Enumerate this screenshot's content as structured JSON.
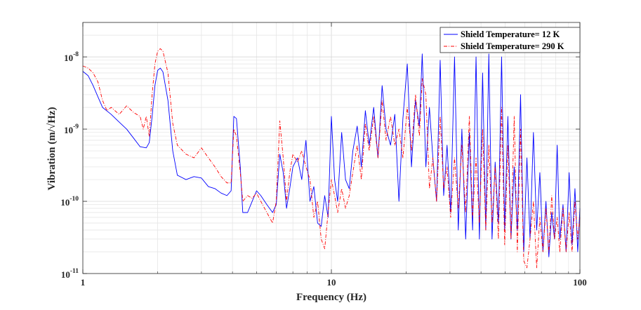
{
  "chart_data": {
    "type": "line",
    "title": "",
    "xlabel": "Frequency (Hz)",
    "ylabel": "Vibration (m/√Hz)",
    "x_scale": "log",
    "y_scale": "log",
    "xlim": [
      1,
      100
    ],
    "ylim": [
      1e-11,
      3e-08
    ],
    "grid": true,
    "legend_position": "top-right",
    "x_ticks": [
      {
        "value": 1,
        "label": "1"
      },
      {
        "value": 10,
        "label": "10"
      },
      {
        "value": 100,
        "label": "100"
      }
    ],
    "y_ticks": [
      {
        "value": 1e-11,
        "mantissa": "10",
        "exponent": "-11"
      },
      {
        "value": 1e-10,
        "mantissa": "10",
        "exponent": "-10"
      },
      {
        "value": 1e-09,
        "mantissa": "10",
        "exponent": "-9"
      },
      {
        "value": 1e-08,
        "mantissa": "10",
        "exponent": "-8"
      }
    ],
    "series": [
      {
        "name": "Shield Temperature= 12 K",
        "color": "#0000ff",
        "line_style": "solid",
        "points": [
          [
            1.0,
            6.3e-09
          ],
          [
            1.05,
            5.5e-09
          ],
          [
            1.1,
            4e-09
          ],
          [
            1.15,
            2.8e-09
          ],
          [
            1.2,
            2e-09
          ],
          [
            1.3,
            1.6e-09
          ],
          [
            1.4,
            1.25e-09
          ],
          [
            1.5,
            1e-09
          ],
          [
            1.6,
            7.5e-10
          ],
          [
            1.7,
            5.7e-10
          ],
          [
            1.8,
            5.5e-10
          ],
          [
            1.85,
            6.5e-10
          ],
          [
            1.9,
            1.5e-09
          ],
          [
            1.95,
            4e-09
          ],
          [
            2.0,
            6.5e-09
          ],
          [
            2.05,
            7e-09
          ],
          [
            2.1,
            6.2e-09
          ],
          [
            2.2,
            2.5e-09
          ],
          [
            2.3,
            5e-10
          ],
          [
            2.4,
            2.3e-10
          ],
          [
            2.6,
            2e-10
          ],
          [
            2.8,
            2.2e-10
          ],
          [
            3.0,
            2.1e-10
          ],
          [
            3.2,
            1.6e-10
          ],
          [
            3.4,
            1.5e-10
          ],
          [
            3.6,
            1.3e-10
          ],
          [
            3.8,
            1.2e-10
          ],
          [
            3.95,
            1.4e-10
          ],
          [
            4.05,
            1.5e-09
          ],
          [
            4.15,
            1.4e-09
          ],
          [
            4.3,
            3e-10
          ],
          [
            4.4,
            7e-11
          ],
          [
            4.6,
            7e-11
          ],
          [
            4.8,
            1e-10
          ],
          [
            5.0,
            1.4e-10
          ],
          [
            5.2,
            1.2e-10
          ],
          [
            5.5,
            9e-11
          ],
          [
            5.8,
            7e-11
          ],
          [
            6.0,
            9e-11
          ],
          [
            6.2,
            4.5e-10
          ],
          [
            6.4,
            2.5e-10
          ],
          [
            6.6,
            8e-11
          ],
          [
            6.8,
            1.5e-10
          ],
          [
            7.0,
            3e-10
          ],
          [
            7.3,
            4e-10
          ],
          [
            7.6,
            2e-10
          ],
          [
            7.9,
            7e-10
          ],
          [
            8.2,
            1e-10
          ],
          [
            8.5,
            1.6e-10
          ],
          [
            8.8,
            5e-11
          ],
          [
            9.1,
            4.5e-11
          ],
          [
            9.4,
            1.2e-10
          ],
          [
            9.7,
            6e-11
          ],
          [
            10.0,
            1.5e-09
          ],
          [
            10.3,
            2e-10
          ],
          [
            10.6,
            1e-10
          ],
          [
            11.0,
            9e-10
          ],
          [
            11.4,
            2e-10
          ],
          [
            11.8,
            1.5e-10
          ],
          [
            12.2,
            5e-10
          ],
          [
            12.7,
            1.1e-09
          ],
          [
            13.2,
            3e-10
          ],
          [
            13.7,
            1.8e-09
          ],
          [
            14.2,
            6e-10
          ],
          [
            14.8,
            2e-09
          ],
          [
            15.4,
            4e-10
          ],
          [
            16.0,
            4e-09
          ],
          [
            16.6,
            1e-09
          ],
          [
            17.3,
            6e-10
          ],
          [
            18.0,
            1.6e-09
          ],
          [
            18.7,
            1e-10
          ],
          [
            19.4,
            1.4e-09
          ],
          [
            20.2,
            8e-09
          ],
          [
            21.0,
            3e-10
          ],
          [
            21.8,
            2.5e-09
          ],
          [
            22.6,
            1.1e-09
          ],
          [
            23.2,
            1.1e-08
          ],
          [
            24.0,
            3e-10
          ],
          [
            24.8,
            2e-09
          ],
          [
            25.6,
            4e-10
          ],
          [
            26.5,
            1e-10
          ],
          [
            27.4,
            9e-09
          ],
          [
            28.3,
            1.2e-10
          ],
          [
            29.2,
            6e-10
          ],
          [
            30.2,
            7e-11
          ],
          [
            31.3,
            1e-08
          ],
          [
            32.4,
            4e-11
          ],
          [
            33.5,
            1e-09
          ],
          [
            34.7,
            3e-11
          ],
          [
            35.9,
            9e-10
          ],
          [
            37.0,
            4e-11
          ],
          [
            38.2,
            1e-08
          ],
          [
            39.4,
            3e-11
          ],
          [
            40.6,
            6e-09
          ],
          [
            41.8,
            4e-11
          ],
          [
            43.0,
            1.1e-08
          ],
          [
            44.3,
            3e-11
          ],
          [
            45.6,
            3.5e-10
          ],
          [
            47.0,
            5e-11
          ],
          [
            48.4,
            1e-08
          ],
          [
            49.8,
            4e-11
          ],
          [
            51.3,
            1.5e-09
          ],
          [
            52.8,
            3e-11
          ],
          [
            54.4,
            3e-10
          ],
          [
            56.0,
            4e-11
          ],
          [
            57.7,
            3e-09
          ],
          [
            59.4,
            2e-11
          ],
          [
            61.2,
            4e-10
          ],
          [
            63.0,
            3e-11
          ],
          [
            65.0,
            9e-10
          ],
          [
            67.0,
            4e-11
          ],
          [
            69.0,
            2.5e-10
          ],
          [
            71.0,
            2e-11
          ],
          [
            73.0,
            1e-10
          ],
          [
            75.0,
            1.7e-11
          ],
          [
            77.0,
            7e-11
          ],
          [
            79.0,
            3e-11
          ],
          [
            81.0,
            6e-10
          ],
          [
            83.0,
            3e-11
          ],
          [
            85.5,
            9e-11
          ],
          [
            88.0,
            2e-11
          ],
          [
            90.5,
            2.5e-10
          ],
          [
            93.0,
            2.5e-11
          ],
          [
            95.5,
            1.5e-10
          ],
          [
            98.0,
            2e-11
          ],
          [
            100.0,
            8e-11
          ]
        ]
      },
      {
        "name": "Shield Temperature= 290 K",
        "color": "#ff0000",
        "line_style": "dashdot",
        "points": [
          [
            1.0,
            7.5e-09
          ],
          [
            1.05,
            7e-09
          ],
          [
            1.1,
            6e-09
          ],
          [
            1.15,
            4.5e-09
          ],
          [
            1.2,
            2.5e-09
          ],
          [
            1.25,
            1.8e-09
          ],
          [
            1.3,
            2e-09
          ],
          [
            1.4,
            1.6e-09
          ],
          [
            1.5,
            2.1e-09
          ],
          [
            1.6,
            1.7e-09
          ],
          [
            1.7,
            1.5e-09
          ],
          [
            1.75,
            1e-09
          ],
          [
            1.8,
            1.5e-09
          ],
          [
            1.85,
            8e-10
          ],
          [
            1.9,
            3e-09
          ],
          [
            1.95,
            8e-09
          ],
          [
            2.0,
            1.2e-08
          ],
          [
            2.05,
            1.3e-08
          ],
          [
            2.1,
            1.2e-08
          ],
          [
            2.2,
            6e-09
          ],
          [
            2.3,
            1.2e-09
          ],
          [
            2.4,
            6e-10
          ],
          [
            2.6,
            4.5e-10
          ],
          [
            2.8,
            4e-10
          ],
          [
            3.0,
            5.5e-10
          ],
          [
            3.2,
            4e-10
          ],
          [
            3.4,
            3e-10
          ],
          [
            3.6,
            2.2e-10
          ],
          [
            3.8,
            1.8e-10
          ],
          [
            3.95,
            1.8e-10
          ],
          [
            4.05,
            1e-09
          ],
          [
            4.15,
            8e-10
          ],
          [
            4.3,
            2.5e-10
          ],
          [
            4.4,
            1e-10
          ],
          [
            4.6,
            1.2e-10
          ],
          [
            4.8,
            1.1e-10
          ],
          [
            5.0,
            1.3e-10
          ],
          [
            5.2,
            1e-10
          ],
          [
            5.5,
            7e-11
          ],
          [
            5.8,
            5e-11
          ],
          [
            6.0,
            1e-10
          ],
          [
            6.2,
            1.3e-09
          ],
          [
            6.4,
            4e-10
          ],
          [
            6.6,
            1e-10
          ],
          [
            6.8,
            2.5e-10
          ],
          [
            7.0,
            4.5e-10
          ],
          [
            7.3,
            3.5e-10
          ],
          [
            7.6,
            5e-10
          ],
          [
            7.9,
            3e-10
          ],
          [
            8.2,
            2e-10
          ],
          [
            8.5,
            6e-11
          ],
          [
            8.8,
            1e-10
          ],
          [
            9.1,
            3e-11
          ],
          [
            9.4,
            2.2e-11
          ],
          [
            9.7,
            7e-11
          ],
          [
            10.0,
            2e-10
          ],
          [
            10.3,
            1.2e-10
          ],
          [
            10.6,
            7e-11
          ],
          [
            11.0,
            1.5e-10
          ],
          [
            11.4,
            8e-11
          ],
          [
            11.8,
            1.2e-10
          ],
          [
            12.2,
            2.5e-10
          ],
          [
            12.7,
            6e-10
          ],
          [
            13.2,
            2e-10
          ],
          [
            13.7,
            1.2e-09
          ],
          [
            14.2,
            5e-10
          ],
          [
            14.8,
            1.5e-09
          ],
          [
            15.4,
            4e-10
          ],
          [
            16.0,
            2.5e-09
          ],
          [
            16.6,
            7e-10
          ],
          [
            17.3,
            1.5e-09
          ],
          [
            18.0,
            6e-10
          ],
          [
            18.7,
            1e-09
          ],
          [
            19.4,
            4e-10
          ],
          [
            20.2,
            2e-09
          ],
          [
            21.0,
            5e-10
          ],
          [
            21.8,
            3e-09
          ],
          [
            22.6,
            8e-10
          ],
          [
            23.2,
            5e-09
          ],
          [
            24.0,
            3e-09
          ],
          [
            24.8,
            1.5e-10
          ],
          [
            25.6,
            4e-10
          ],
          [
            26.5,
            1e-10
          ],
          [
            27.4,
            1.5e-09
          ],
          [
            28.3,
            1.5e-10
          ],
          [
            29.2,
            3e-10
          ],
          [
            30.2,
            6e-11
          ],
          [
            31.3,
            4e-10
          ],
          [
            32.4,
            8e-11
          ],
          [
            33.5,
            6e-10
          ],
          [
            34.7,
            7e-11
          ],
          [
            35.9,
            1.5e-09
          ],
          [
            37.0,
            6e-11
          ],
          [
            38.2,
            4e-10
          ],
          [
            39.4,
            5e-11
          ],
          [
            40.6,
            1e-09
          ],
          [
            41.8,
            4e-11
          ],
          [
            43.0,
            6e-10
          ],
          [
            44.3,
            5e-11
          ],
          [
            45.6,
            3e-10
          ],
          [
            47.0,
            3e-11
          ],
          [
            48.4,
            2e-09
          ],
          [
            49.8,
            2.5e-11
          ],
          [
            51.3,
            6e-10
          ],
          [
            52.8,
            3e-11
          ],
          [
            54.4,
            1.5e-09
          ],
          [
            56.0,
            2e-11
          ],
          [
            57.7,
            1e-09
          ],
          [
            59.4,
            1.5e-11
          ],
          [
            61.2,
            1.2e-11
          ],
          [
            63.0,
            3e-11
          ],
          [
            65.0,
            1e-10
          ],
          [
            67.0,
            1.2e-11
          ],
          [
            69.0,
            6e-11
          ],
          [
            71.0,
            2e-11
          ],
          [
            73.0,
            8e-11
          ],
          [
            75.0,
            2e-11
          ],
          [
            77.0,
            1.2e-10
          ],
          [
            79.0,
            3e-11
          ],
          [
            81.0,
            6e-11
          ],
          [
            83.0,
            2e-11
          ],
          [
            85.5,
            8e-11
          ],
          [
            88.0,
            2e-11
          ],
          [
            90.5,
            7e-11
          ],
          [
            93.0,
            2e-11
          ],
          [
            95.5,
            1e-10
          ],
          [
            98.0,
            3e-11
          ],
          [
            100.0,
            6e-11
          ]
        ]
      }
    ]
  }
}
